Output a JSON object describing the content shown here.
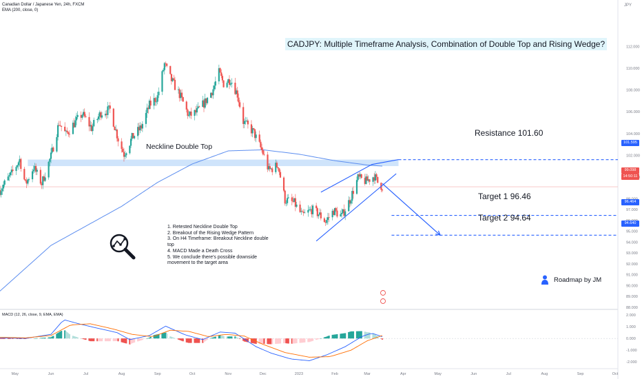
{
  "header": {
    "line1": "Canadian Dollar / Japanese Yen, 24h, FXCM",
    "line2": "EMA (200, close, 0)",
    "currency": "JPY"
  },
  "title": "CADJPY: Multiple Timeframe Analysis, Combination of Double Top and Rising Wedge?",
  "annotations": {
    "neckline": "Neckline Double Top",
    "resistance": "Resistance 101.60",
    "target1": "Target 1  96.46",
    "target2": "Target 2  94.64"
  },
  "notes": [
    "1. Retested Neckline Double Top",
    "2. Breakout of the Rising Wedge Pattern",
    "3. On H4 Timeframe: Breakout Neckline double top",
    "4. MACD Made a Death Cross",
    "5.  We conclude there's possible downside movement to the target area"
  ],
  "roadmap": "Roadmap by JM",
  "macd_label": "MACD (12, 26, close, 9, EMA, EMA)",
  "price_tags": {
    "resistance": "101.595",
    "current": "99.098",
    "countdown": "14:50:11",
    "target1": "96.464",
    "target2": "94.640"
  },
  "colors": {
    "up": "#26a69a",
    "down": "#ef5350",
    "ema": "#5b8def",
    "level": "#2962ff",
    "macd": "#2962ff",
    "signal": "#ff6d00",
    "neckline_zone": "#cfe4fb",
    "current": "#ef5350"
  },
  "chart_data": {
    "type": "candlestick",
    "title": "CADJPY: Multiple Timeframe Analysis, Combination of Double Top and Rising Wedge?",
    "xlabel": "",
    "ylabel": "",
    "x_tick_labels": [
      "May",
      "Jun",
      "Jul",
      "Aug",
      "Sep",
      "Oct",
      "Nov",
      "Dec",
      "2023",
      "Feb",
      "Mar",
      "Apr",
      "May",
      "Jun",
      "Jul",
      "Aug",
      "Sep",
      "Oct"
    ],
    "y_tick_labels": [
      "112.000",
      "110.000",
      "108.000",
      "106.000",
      "104.000",
      "102.000",
      "100.000",
      "98.000",
      "97.000",
      "96.000",
      "95.000",
      "94.000",
      "93.000",
      "92.000",
      "91.000",
      "90.000",
      "89.000",
      "88.000"
    ],
    "ylim": [
      88,
      113.5
    ],
    "price_path": [
      [
        "2022-04-18",
        98.8
      ],
      [
        "2022-04-28",
        100.3
      ],
      [
        "2022-05-05",
        101.6
      ],
      [
        "2022-05-10",
        99.3
      ],
      [
        "2022-05-17",
        100.9
      ],
      [
        "2022-05-24",
        99.4
      ],
      [
        "2022-06-01",
        101.9
      ],
      [
        "2022-06-08",
        105.0
      ],
      [
        "2022-06-14",
        103.9
      ],
      [
        "2022-06-20",
        104.8
      ],
      [
        "2022-06-28",
        105.8
      ],
      [
        "2022-07-06",
        104.5
      ],
      [
        "2022-07-14",
        105.9
      ],
      [
        "2022-07-22",
        106.2
      ],
      [
        "2022-07-29",
        103.5
      ],
      [
        "2022-08-03",
        102.1
      ],
      [
        "2022-08-10",
        103.6
      ],
      [
        "2022-08-18",
        104.6
      ],
      [
        "2022-08-25",
        106.6
      ],
      [
        "2022-09-01",
        107.4
      ],
      [
        "2022-09-07",
        110.4
      ],
      [
        "2022-09-12",
        109.1
      ],
      [
        "2022-09-20",
        107.6
      ],
      [
        "2022-09-28",
        105.6
      ],
      [
        "2022-10-05",
        106.0
      ],
      [
        "2022-10-12",
        106.9
      ],
      [
        "2022-10-19",
        108.1
      ],
      [
        "2022-10-24",
        109.6
      ],
      [
        "2022-10-28",
        108.6
      ],
      [
        "2022-11-03",
        109.0
      ],
      [
        "2022-11-09",
        107.6
      ],
      [
        "2022-11-14",
        105.1
      ],
      [
        "2022-11-23",
        104.1
      ],
      [
        "2022-12-01",
        102.2
      ],
      [
        "2022-12-06",
        100.6
      ],
      [
        "2022-12-14",
        101.1
      ],
      [
        "2022-12-20",
        97.9
      ],
      [
        "2022-12-28",
        97.6
      ],
      [
        "2023-01-04",
        96.4
      ],
      [
        "2023-01-12",
        97.0
      ],
      [
        "2023-01-18",
        96.6
      ],
      [
        "2023-01-24",
        95.9
      ],
      [
        "2023-01-31",
        96.9
      ],
      [
        "2023-02-07",
        96.4
      ],
      [
        "2023-02-14",
        97.9
      ],
      [
        "2023-02-21",
        99.9
      ],
      [
        "2023-02-28",
        99.6
      ],
      [
        "2023-03-07",
        100.1
      ],
      [
        "2023-03-10",
        99.5
      ],
      [
        "2023-03-14",
        99.1
      ]
    ],
    "ema_path": [
      [
        "2022-04-18",
        89.5
      ],
      [
        "2022-06-01",
        93.7
      ],
      [
        "2022-08-01",
        97.3
      ],
      [
        "2022-09-01",
        99.5
      ],
      [
        "2022-10-01",
        101.2
      ],
      [
        "2022-11-01",
        102.4
      ],
      [
        "2022-12-01",
        102.5
      ],
      [
        "2023-01-01",
        102.1
      ],
      [
        "2023-02-01",
        101.5
      ],
      [
        "2023-03-01",
        101.1
      ],
      [
        "2023-03-14",
        101.0
      ]
    ],
    "levels": [
      {
        "label": "Resistance 101.60",
        "value": 101.595
      },
      {
        "label": "Target 1  96.46",
        "value": 96.464
      },
      {
        "label": "Target 2  94.64",
        "value": 94.64
      }
    ],
    "current_price": 99.098,
    "neckline_zone": [
      101.0,
      101.6
    ],
    "wedge": {
      "upper": [
        [
          "2023-01-20",
          98.6
        ],
        [
          "2023-03-05",
          101.15
        ],
        [
          "2023-03-28",
          101.6
        ]
      ],
      "lower": [
        [
          "2023-01-16",
          94.1
        ],
        [
          "2023-03-26",
          100.3
        ]
      ]
    },
    "projection": [
      [
        "2023-03-14",
        99.4
      ],
      [
        "2023-05-03",
        94.64
      ]
    ],
    "macd": {
      "label": "MACD (12, 26, close, 9, EMA, EMA)",
      "y_tick_labels": [
        "2.000",
        "1.000",
        "0.000",
        "-1.000",
        "-2.000"
      ],
      "ylim": [
        -2.4,
        2.3
      ],
      "macd_path": [
        [
          "2022-04-18",
          0.05
        ],
        [
          "2022-05-10",
          0.0
        ],
        [
          "2022-06-01",
          0.35
        ],
        [
          "2022-06-12",
          1.6
        ],
        [
          "2022-06-25",
          1.25
        ],
        [
          "2022-07-10",
          0.9
        ],
        [
          "2022-07-28",
          0.5
        ],
        [
          "2022-08-08",
          -0.1
        ],
        [
          "2022-08-25",
          0.25
        ],
        [
          "2022-09-08",
          1.05
        ],
        [
          "2022-09-25",
          0.3
        ],
        [
          "2022-10-10",
          -0.1
        ],
        [
          "2022-10-25",
          0.55
        ],
        [
          "2022-11-07",
          0.45
        ],
        [
          "2022-11-25",
          -0.7
        ],
        [
          "2022-12-08",
          -1.25
        ],
        [
          "2022-12-25",
          -1.75
        ],
        [
          "2023-01-10",
          -1.9
        ],
        [
          "2023-01-25",
          -1.4
        ],
        [
          "2023-02-10",
          -0.7
        ],
        [
          "2023-02-25",
          0.2
        ],
        [
          "2023-03-05",
          0.45
        ],
        [
          "2023-03-14",
          0.15
        ]
      ],
      "signal_path": [
        [
          "2022-04-18",
          0.1
        ],
        [
          "2022-05-10",
          0.05
        ],
        [
          "2022-06-01",
          0.25
        ],
        [
          "2022-06-18",
          1.15
        ],
        [
          "2022-07-05",
          1.25
        ],
        [
          "2022-07-25",
          0.8
        ],
        [
          "2022-08-10",
          0.35
        ],
        [
          "2022-08-28",
          0.15
        ],
        [
          "2022-09-12",
          0.7
        ],
        [
          "2022-09-28",
          0.6
        ],
        [
          "2022-10-15",
          0.15
        ],
        [
          "2022-10-30",
          0.35
        ],
        [
          "2022-11-15",
          0.2
        ],
        [
          "2022-12-01",
          -0.5
        ],
        [
          "2022-12-20",
          -1.2
        ],
        [
          "2023-01-10",
          -1.6
        ],
        [
          "2023-01-28",
          -1.55
        ],
        [
          "2023-02-15",
          -1.0
        ],
        [
          "2023-03-01",
          -0.2
        ],
        [
          "2023-03-14",
          0.25
        ]
      ]
    }
  }
}
